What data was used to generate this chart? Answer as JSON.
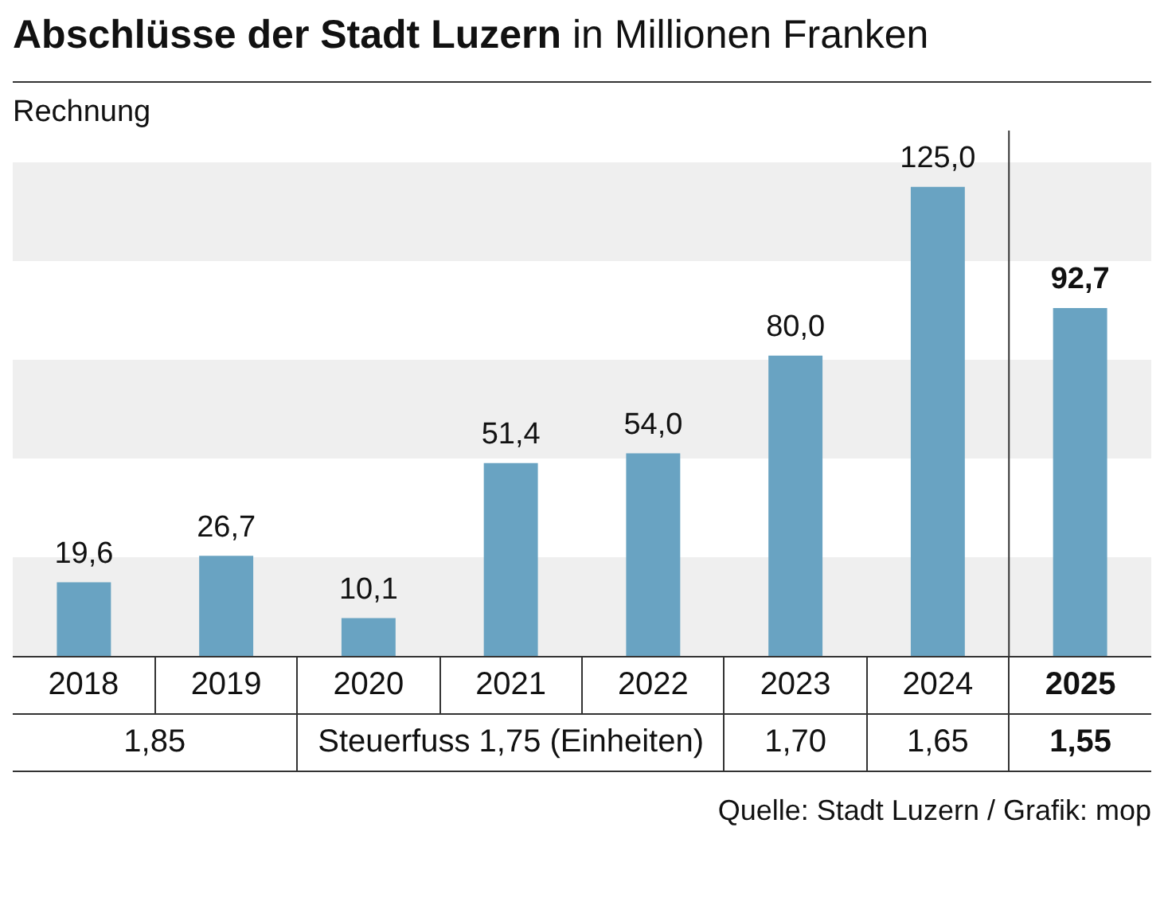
{
  "chart_data": {
    "type": "bar",
    "title": "Abschlüsse der Stadt Luzern",
    "subtitle": "in Millionen Franken",
    "ylabel": "Rechnung",
    "categories": [
      "2018",
      "2019",
      "2020",
      "2021",
      "2022",
      "2023",
      "2024",
      "2025"
    ],
    "values": [
      19.6,
      26.7,
      10.1,
      51.4,
      54.0,
      80.0,
      125.0,
      92.7
    ],
    "value_labels": [
      "19,6",
      "26,7",
      "10,1",
      "51,4",
      "54,0",
      "80,0",
      "125,0",
      "92,7"
    ],
    "color": "#69a3c2",
    "tick_labels": "x",
    "annotations": [
      "1,85",
      "Steuerfuss 1,75 (Einheiten)",
      "1,70",
      "1,65",
      "1,55",
      "Quelle: Stadt Luzern / Grafik: mop"
    ]
  }
}
